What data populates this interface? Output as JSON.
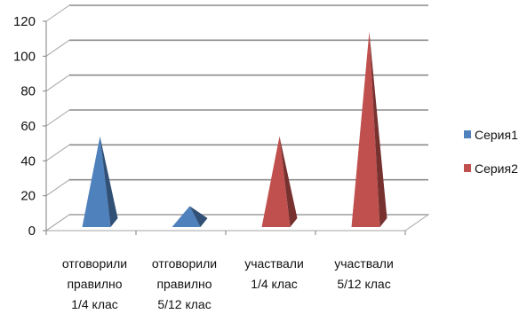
{
  "chart_data": {
    "type": "bar",
    "style": "3d-pyramid",
    "categories": [
      [
        "отговорили",
        "правилно",
        "1/4 клас"
      ],
      [
        "отговорили",
        "правилно",
        "5/12 клас"
      ],
      [
        "участвали",
        "1/4 клас"
      ],
      [
        "участвали",
        "5/12 клас"
      ]
    ],
    "series": [
      {
        "name": "Серия1",
        "color": "#4f81bd",
        "values": [
          50,
          10,
          null,
          null
        ]
      },
      {
        "name": "Серия2",
        "color": "#c0504d",
        "values": [
          null,
          null,
          50,
          110
        ]
      }
    ],
    "ylim": [
      0,
      120
    ],
    "yticks": [
      0,
      20,
      40,
      60,
      80,
      100,
      120
    ],
    "grid": true,
    "legend_position": "right"
  }
}
